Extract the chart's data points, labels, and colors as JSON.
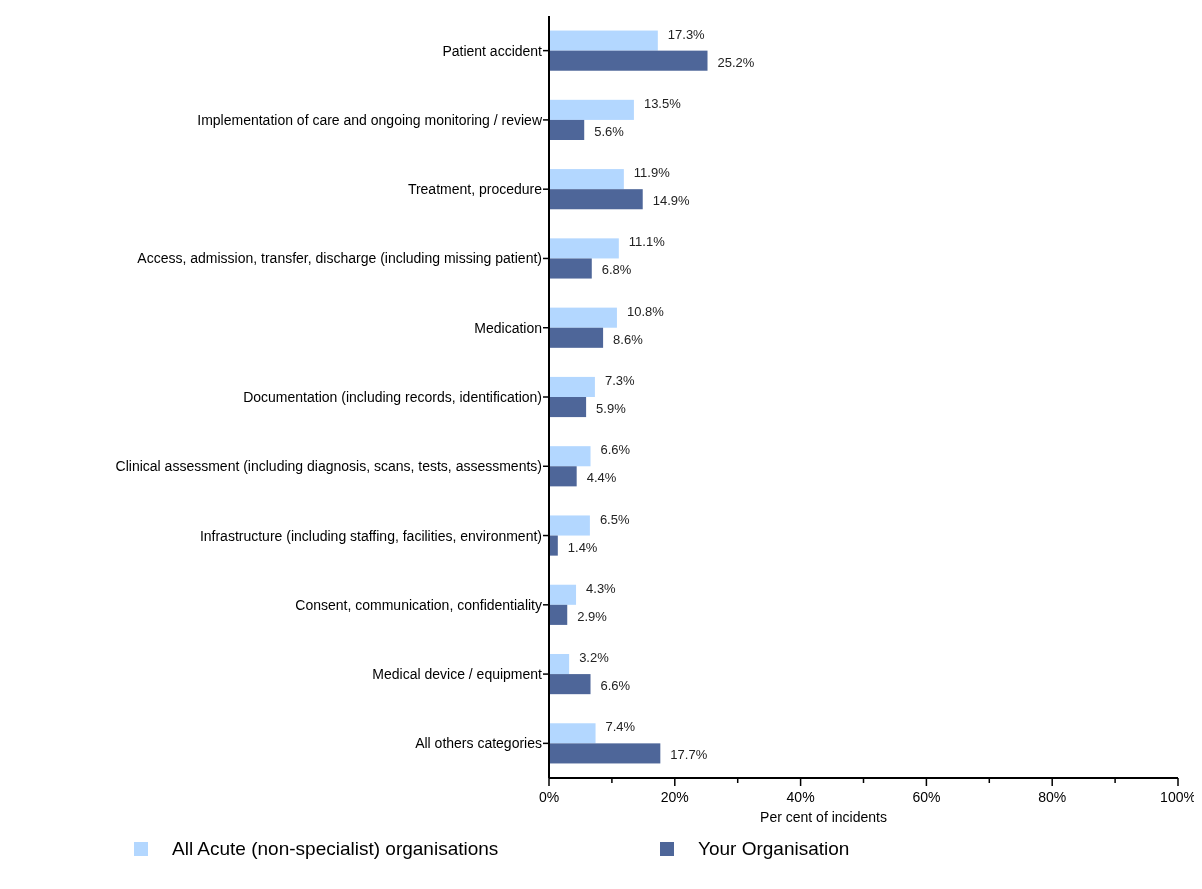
{
  "chart_data": {
    "type": "bar",
    "orientation": "horizontal",
    "xlabel": "Per cent of incidents",
    "categories": [
      "Patient accident",
      "Implementation of care and ongoing monitoring / review",
      "Treatment, procedure",
      "Access, admission, transfer, discharge (including missing patient)",
      "Medication",
      "Documentation (including records, identification)",
      "Clinical assessment (including diagnosis, scans, tests, assessments)",
      "Infrastructure (including staffing, facilities, environment)",
      "Consent, communication, confidentiality",
      "Medical device / equipment",
      "All others categories"
    ],
    "series": [
      {
        "name": "All Acute (non-specialist) organisations",
        "color": "#b3d7ff",
        "values": [
          17.3,
          13.5,
          11.9,
          11.1,
          10.8,
          7.3,
          6.6,
          6.5,
          4.3,
          3.2,
          7.4
        ],
        "value_labels": [
          "17.3%",
          "13.5%",
          "11.9%",
          "11.1%",
          "10.8%",
          "7.3%",
          "6.6%",
          "6.5%",
          "4.3%",
          "3.2%",
          "7.4%"
        ]
      },
      {
        "name": "Your Organisation",
        "color": "#4e6699",
        "values": [
          25.2,
          5.6,
          14.9,
          6.8,
          8.6,
          5.9,
          4.4,
          1.4,
          2.9,
          6.6,
          17.7
        ],
        "value_labels": [
          "25.2%",
          "5.6%",
          "14.9%",
          "6.8%",
          "8.6%",
          "5.9%",
          "4.4%",
          "1.4%",
          "2.9%",
          "6.6%",
          "17.7%"
        ]
      }
    ],
    "xlim": [
      0,
      100
    ],
    "xticks": [
      {
        "value": 0,
        "label": "0%"
      },
      {
        "value": 10,
        "label": null
      },
      {
        "value": 20,
        "label": "20%"
      },
      {
        "value": 30,
        "label": null
      },
      {
        "value": 40,
        "label": "40%"
      },
      {
        "value": 50,
        "label": null
      },
      {
        "value": 60,
        "label": "60%"
      },
      {
        "value": 70,
        "label": null
      },
      {
        "value": 80,
        "label": "80%"
      },
      {
        "value": 90,
        "label": null
      },
      {
        "value": 100,
        "label": "100%"
      }
    ],
    "grid": false,
    "legend": "bottom"
  }
}
